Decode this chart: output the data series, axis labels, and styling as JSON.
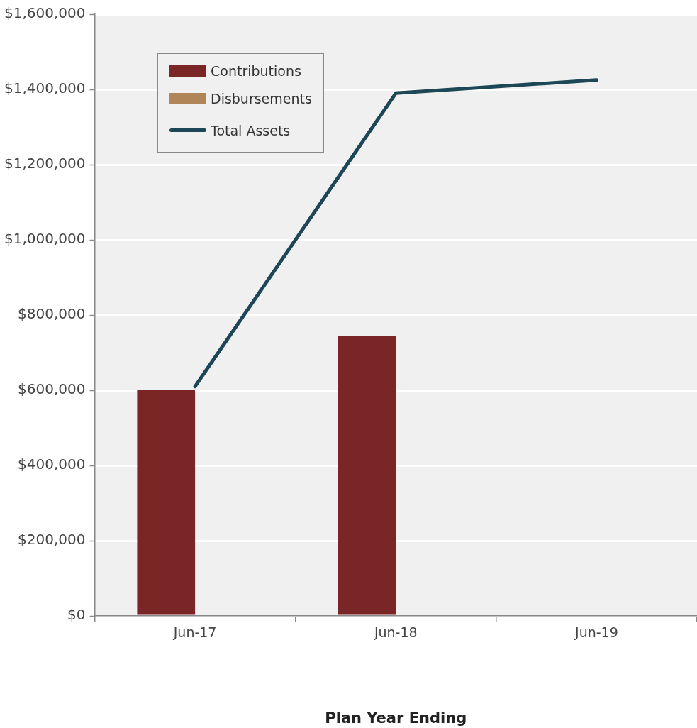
{
  "chart_data": {
    "type": "bar",
    "xlabel": "Plan Year Ending",
    "categories": [
      "Jun-17",
      "Jun-18",
      "Jun-19"
    ],
    "series": [
      {
        "name": "Contributions",
        "color": "#7b2626",
        "values": [
          600000,
          745000,
          null
        ]
      },
      {
        "name": "Disbursements",
        "color": "#b08557",
        "values": [
          null,
          null,
          null
        ]
      },
      {
        "name": "Total Assets",
        "type": "line",
        "color": "#1d4757",
        "values": [
          610000,
          1390000,
          1425000
        ],
        "marker": "none"
      }
    ],
    "ylim": [
      0,
      1600000
    ],
    "yticks": [
      {
        "value": 0,
        "label": "$0"
      },
      {
        "value": 200000,
        "label": "$200,000"
      },
      {
        "value": 400000,
        "label": "$400,000"
      },
      {
        "value": 600000,
        "label": "$600,000"
      },
      {
        "value": 800000,
        "label": "$800,000"
      },
      {
        "value": 1000000,
        "label": "$1,000,000"
      },
      {
        "value": 1200000,
        "label": "$1,200,000"
      },
      {
        "value": 1400000,
        "label": "$1,400,000"
      },
      {
        "value": 1600000,
        "label": "$1,600,000"
      }
    ],
    "grid": "y",
    "legend": "top left"
  }
}
